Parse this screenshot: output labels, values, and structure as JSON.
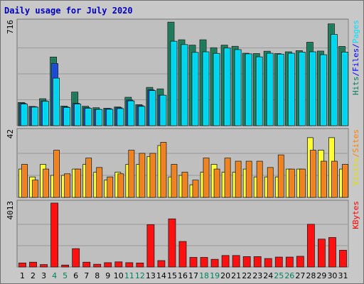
{
  "chart_data": {
    "type": "bar",
    "title": "Daily usage for July 2020",
    "categories": [
      "1",
      "2",
      "3",
      "4",
      "5",
      "6",
      "7",
      "8",
      "9",
      "10",
      "11",
      "12",
      "13",
      "14",
      "15",
      "16",
      "17",
      "18",
      "19",
      "20",
      "21",
      "22",
      "23",
      "24",
      "25",
      "26",
      "27",
      "28",
      "29",
      "30",
      "31"
    ],
    "weekend_days": [
      "4",
      "5",
      "11",
      "12",
      "18",
      "19",
      "25",
      "26"
    ],
    "panels": [
      {
        "id": "hits",
        "y_max_label": "716",
        "ylim": [
          0,
          716
        ],
        "legend": [
          {
            "text": "Hits",
            "color": "#00805c"
          },
          {
            "text": "/",
            "color": "#0000ff"
          },
          {
            "text": "Files",
            "color": "#0000ff"
          },
          {
            "text": "/",
            "color": "#0000ff"
          },
          {
            "text": "Pages",
            "color": "#00e0ff"
          }
        ],
        "series": [
          {
            "name": "Hits",
            "color": "#1f7a5c",
            "values": [
              160,
              133,
              186,
              474,
              135,
              232,
              134,
              124,
              120,
              129,
              196,
              145,
              264,
              254,
              715,
              593,
              556,
              593,
              538,
              556,
              548,
              500,
              498,
              514,
              498,
              510,
              518,
              576,
              515,
              703,
              547
            ]
          },
          {
            "name": "Files",
            "color": "#1a4bd8",
            "values": [
              154,
              131,
              171,
              429,
              129,
              154,
              124,
              113,
              118,
              124,
              177,
              138,
              247,
              210,
              0,
              0,
              0,
              0,
              0,
              0,
              0,
              0,
              0,
              0,
              0,
              0,
              0,
              0,
              0,
              0,
              0
            ]
          },
          {
            "name": "Pages",
            "color": "#00d4f0",
            "values": [
              149,
              128,
              168,
              328,
              126,
              149,
              120,
              112,
              113,
              118,
              171,
              133,
              242,
              210,
              583,
              560,
              506,
              510,
              499,
              536,
              525,
              496,
              475,
              500,
              494,
              500,
              508,
              510,
              490,
              630,
              508
            ]
          }
        ]
      },
      {
        "id": "visits",
        "y_max_label": "42",
        "ylim": [
          0,
          42
        ],
        "legend": [
          {
            "text": "Visits",
            "color": "#e0e000"
          },
          {
            "text": "/",
            "color": "#ff8000"
          },
          {
            "text": "Sites",
            "color": "#ff8000"
          }
        ],
        "series": [
          {
            "name": "Visits",
            "color": "#ffff33",
            "values": [
              18,
              13,
              21,
              14,
              14,
              18,
              21,
              16,
              11,
              16,
              21,
              21,
              26,
              33,
              13,
              14,
              8,
              16,
              21,
              16,
              16,
              18,
              13,
              13,
              13,
              18,
              18,
              38,
              30,
              38,
              18
            ]
          },
          {
            "name": "Sites",
            "color": "#f08020",
            "values": [
              21,
              11,
              18,
              30,
              15,
              18,
              25,
              19,
              13,
              15,
              30,
              28,
              28,
              35,
              21,
              16,
              11,
              25,
              18,
              25,
              23,
              23,
              23,
              19,
              27,
              18,
              18,
              30,
              23,
              23,
              21
            ]
          }
        ]
      },
      {
        "id": "kbytes",
        "y_max_label": "4013",
        "ylim": [
          0,
          4013
        ],
        "legend": [
          {
            "text": "KBytes",
            "color": "#ff0000"
          }
        ],
        "series": [
          {
            "name": "KBytes",
            "color": "#ff1010",
            "values": [
              250,
              300,
              150,
              4013,
              120,
              1150,
              300,
              170,
              270,
              320,
              270,
              250,
              2660,
              400,
              3020,
              1600,
              600,
              600,
              480,
              720,
              720,
              650,
              650,
              530,
              620,
              620,
              670,
              2680,
              1750,
              1850,
              1050
            ]
          }
        ]
      }
    ],
    "colors": {
      "panel_bg": "#bfbfbf",
      "frame_bg": "#c4c4c4",
      "title": "#0000c0",
      "weekday_label": "#000000",
      "weekend_label": "#00805c"
    }
  }
}
